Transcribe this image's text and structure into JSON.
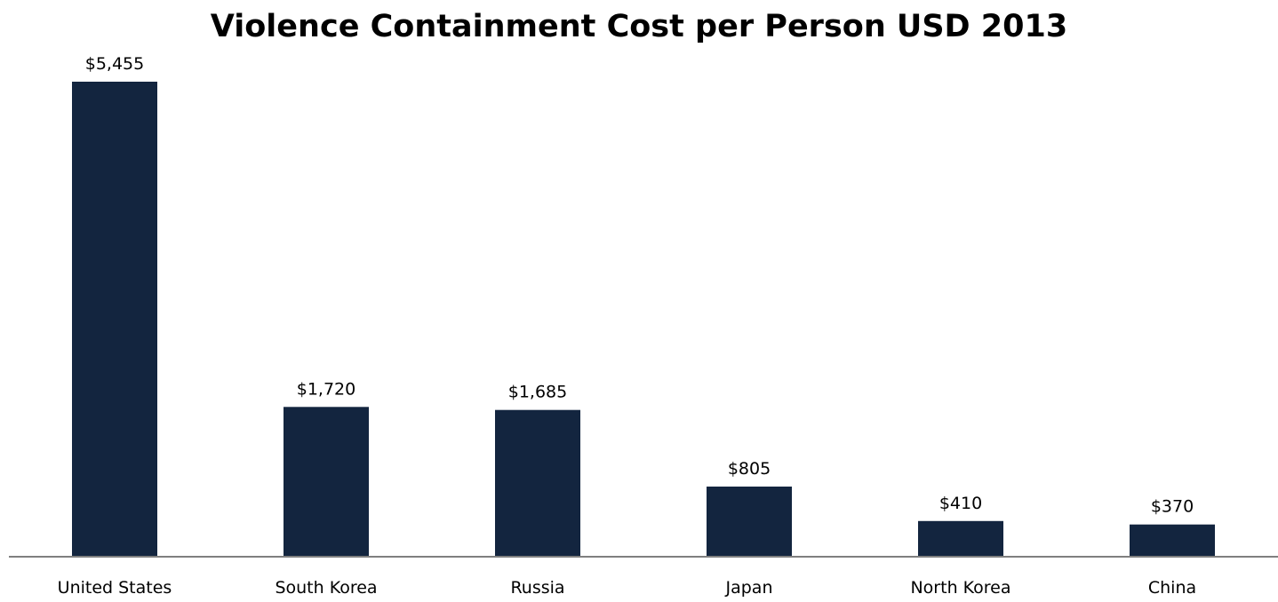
{
  "chart_data": {
    "type": "bar",
    "title": "Violence Containment Cost per Person USD 2013",
    "xlabel": "",
    "ylabel": "",
    "categories": [
      "United States",
      "South Korea",
      "Russia",
      "Japan",
      "North Korea",
      "China"
    ],
    "values": [
      5455,
      1720,
      1685,
      805,
      410,
      370
    ],
    "data_labels": [
      "$5,455",
      "$1,720",
      "$1,685",
      "$805",
      "$410",
      "$370"
    ],
    "ylim": [
      0,
      5455
    ],
    "grid": false,
    "legend": "none",
    "bar_color": "#13253f"
  }
}
